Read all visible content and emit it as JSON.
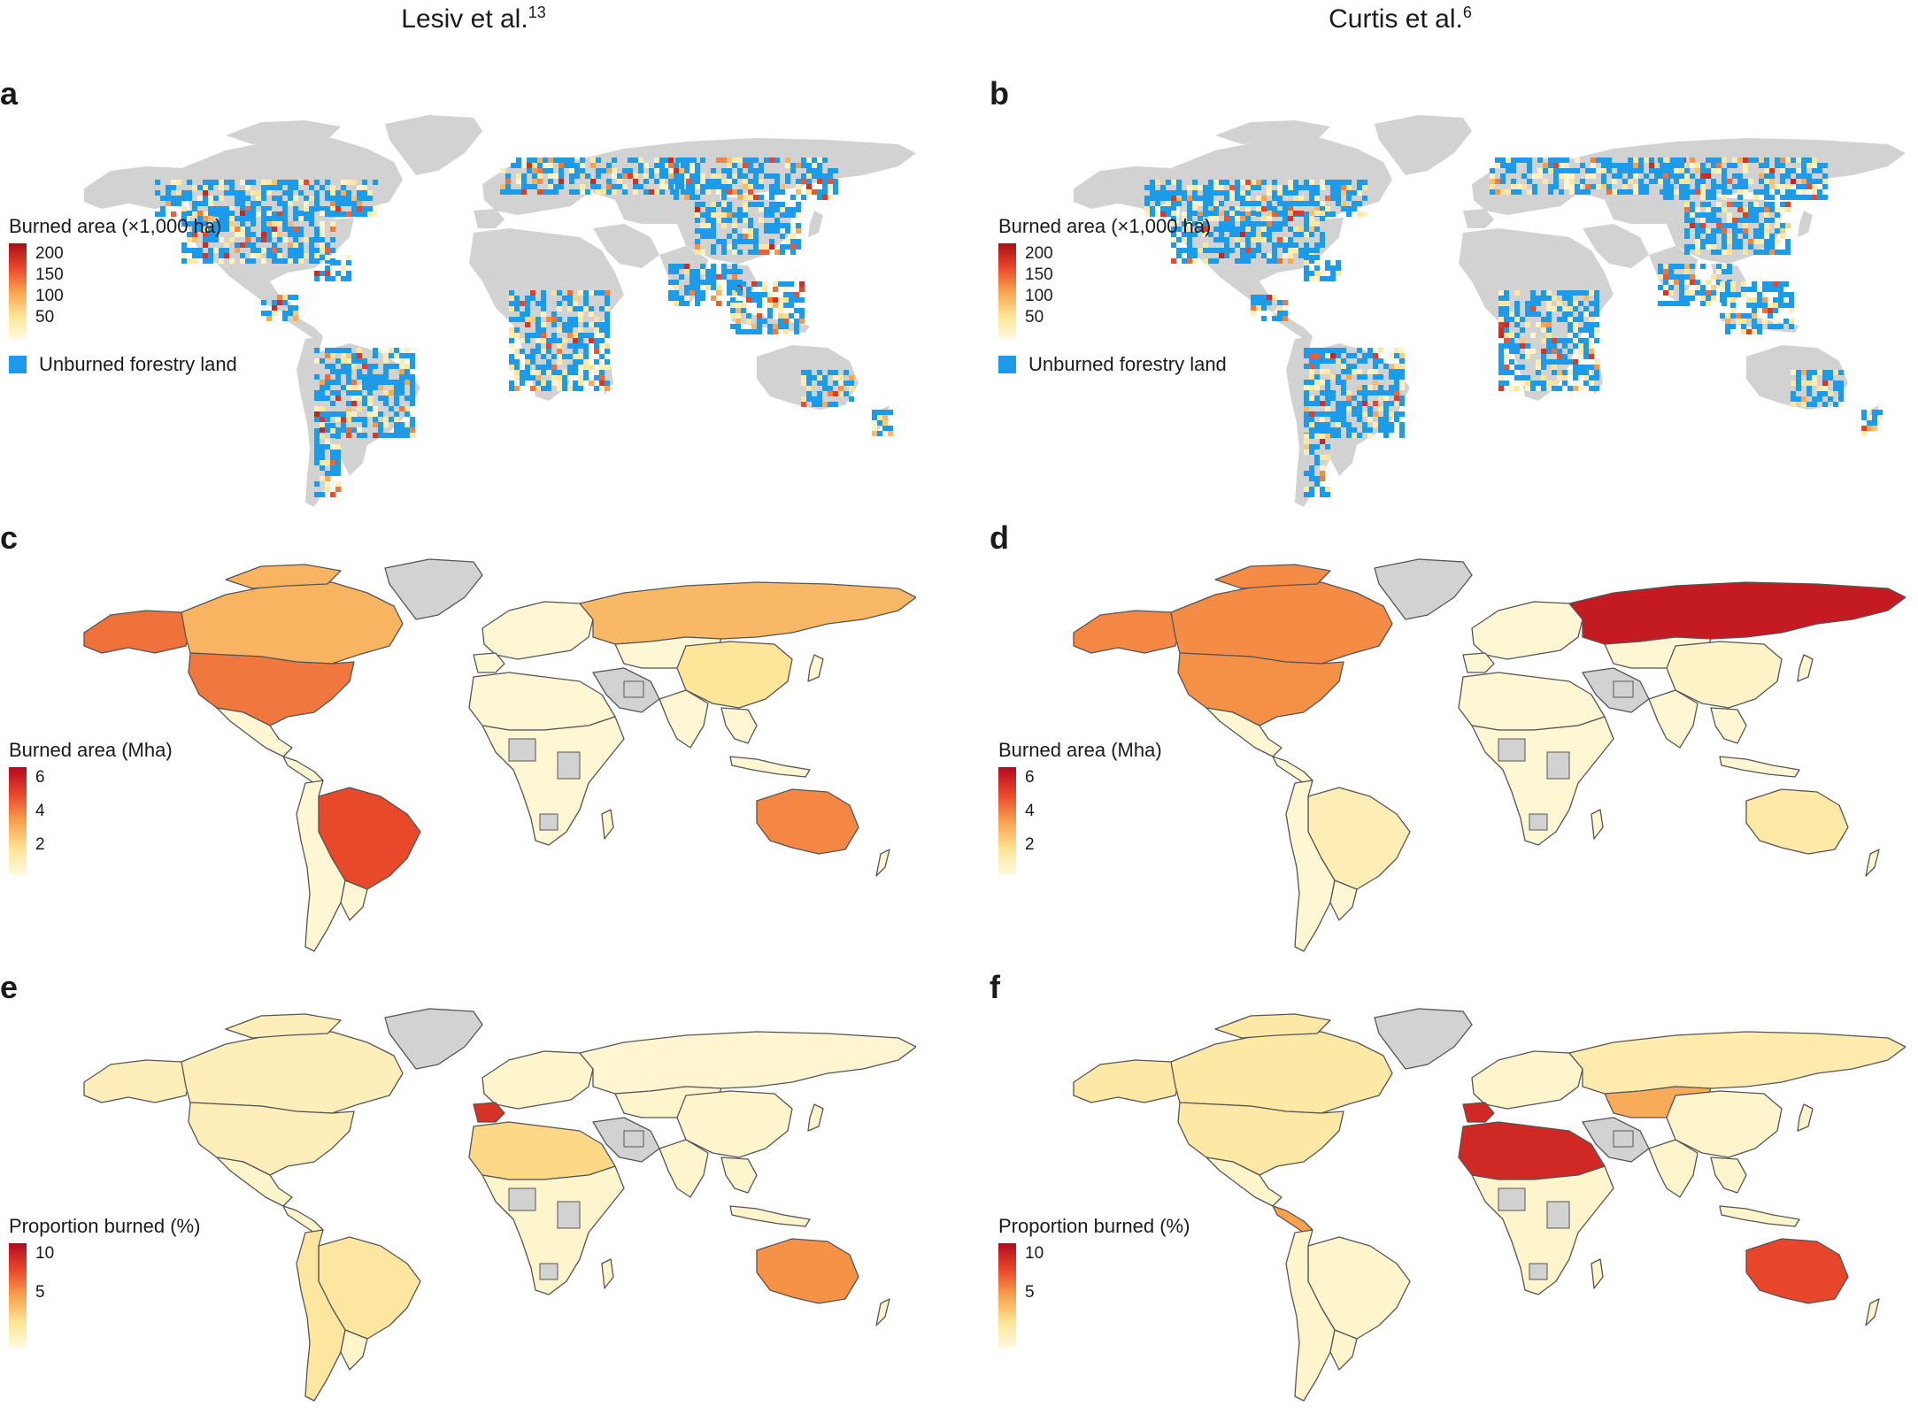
{
  "columns": [
    {
      "name": "Lesiv et al.",
      "ref": "13"
    },
    {
      "name": "Curtis et al.",
      "ref": "6"
    }
  ],
  "panels": [
    {
      "label": "a",
      "type": "grid",
      "source": "Lesiv et al.",
      "legend": {
        "title": "Burned area (×1,000 ha)",
        "ticks": [
          "200",
          "150",
          "100",
          "50"
        ],
        "ramp": [
          "#a50f15",
          "#e8462a",
          "#f7a14d",
          "#fde393",
          "#fffbe1"
        ]
      },
      "unburned_label": "Unburned forestry land"
    },
    {
      "label": "b",
      "type": "grid",
      "source": "Curtis et al.",
      "legend": {
        "title": "Burned area (×1,000 ha)",
        "ticks": [
          "200",
          "150",
          "100",
          "50"
        ],
        "ramp": [
          "#a50f15",
          "#e8462a",
          "#f7a14d",
          "#fde393",
          "#fffbe1"
        ]
      },
      "unburned_label": "Unburned forestry land"
    },
    {
      "label": "c",
      "type": "country",
      "source": "Lesiv et al.",
      "legend": {
        "title": "Burned area (Mha)",
        "ticks": [
          "6",
          "4",
          "2"
        ],
        "ramp": [
          "#b5091f",
          "#e8462a",
          "#f7a14d",
          "#fde393",
          "#fffbe1"
        ]
      }
    },
    {
      "label": "d",
      "type": "country",
      "source": "Curtis et al.",
      "legend": {
        "title": "Burned area (Mha)",
        "ticks": [
          "6",
          "4",
          "2"
        ],
        "ramp": [
          "#b5091f",
          "#e8462a",
          "#f7a14d",
          "#fde393",
          "#fffbe1"
        ]
      }
    },
    {
      "label": "e",
      "type": "country",
      "source": "Lesiv et al.",
      "legend": {
        "title": "Proportion burned (%)",
        "ticks": [
          "10",
          "5"
        ],
        "ramp": [
          "#b5091f",
          "#e8462a",
          "#f7a14d",
          "#fde393",
          "#fffbe1"
        ]
      }
    },
    {
      "label": "f",
      "type": "country",
      "source": "Curtis et al.",
      "legend": {
        "title": "Proportion burned (%)",
        "ticks": [
          "10",
          "5"
        ],
        "ramp": [
          "#b5091f",
          "#e8462a",
          "#f7a14d",
          "#fde393",
          "#fffbe1"
        ]
      }
    }
  ],
  "colors": {
    "no_data": "#d2d2d2",
    "low": "#fff5b8",
    "unburned": "#1b9be9",
    "border": "#555555"
  },
  "region_values": {
    "c": {
      "north_america_us": 4.3,
      "canada": 3.0,
      "alaska": 4.4,
      "brazil": 5.2,
      "russia": 2.9,
      "china": 1.6,
      "australia": 4.0,
      "greenland": null,
      "rest_low": 0.3
    },
    "d": {
      "north_america_us": 3.8,
      "canada": 3.9,
      "alaska": 4.0,
      "brazil": 1.0,
      "russia": 6.5,
      "china": 0.6,
      "australia": 1.3,
      "greenland": null,
      "rest_low": 0.3
    },
    "e": {
      "australia": 6.5,
      "portugal": 10.0,
      "morocco": 3.5,
      "south_america": 2.5,
      "north_america": 1.5,
      "russia": 0.6,
      "rest_low": 0.8
    },
    "f": {
      "australia": 9.0,
      "algeria": 10.5,
      "portugal": 10.5,
      "mongolia": 5.5,
      "venezuela": 6.0,
      "north_america": 2.3,
      "russia": 2.0,
      "rest_low": 0.8
    }
  }
}
